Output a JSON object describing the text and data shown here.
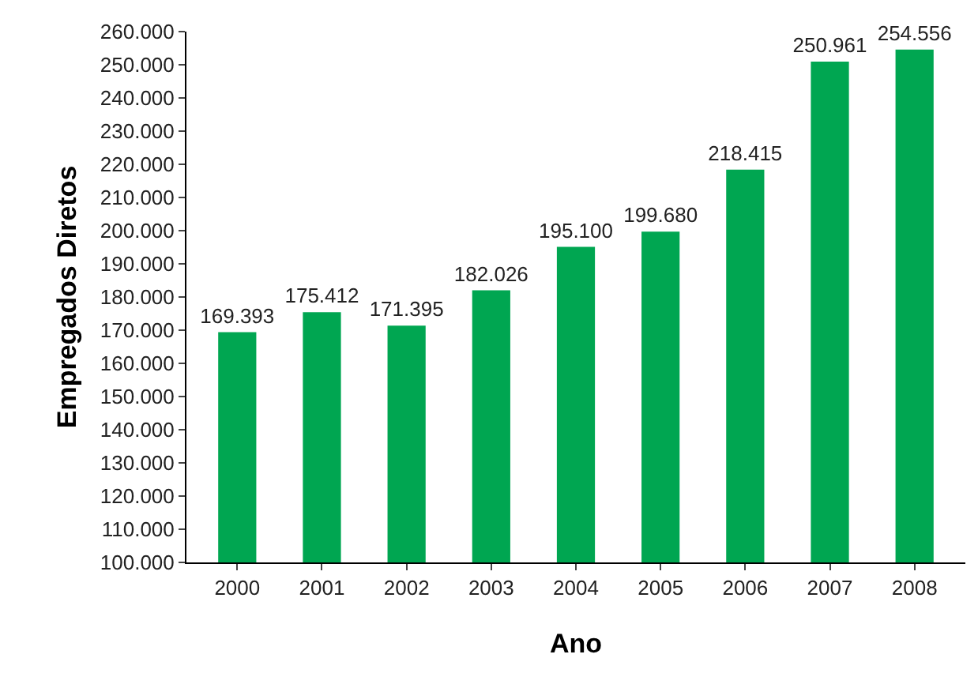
{
  "chart_data": {
    "type": "bar",
    "xlabel": "Ano",
    "ylabel": "Empregados Diretos",
    "categories": [
      "2000",
      "2001",
      "2002",
      "2003",
      "2004",
      "2005",
      "2006",
      "2007",
      "2008"
    ],
    "values": [
      169393,
      175412,
      171395,
      182026,
      195100,
      199680,
      218415,
      250961,
      254556
    ],
    "value_labels": [
      "169.393",
      "175.412",
      "171.395",
      "182.026",
      "195.100",
      "199.680",
      "218.415",
      "250.961",
      "254.556"
    ],
    "color": "#00a651",
    "ylim": [
      100000,
      260000
    ],
    "yticks": [
      {
        "value": 100000,
        "label": "100.000"
      },
      {
        "value": 110000,
        "label": "110.000"
      },
      {
        "value": 120000,
        "label": "120.000"
      },
      {
        "value": 130000,
        "label": "130.000"
      },
      {
        "value": 140000,
        "label": "140.000"
      },
      {
        "value": 150000,
        "label": "150.000"
      },
      {
        "value": 160000,
        "label": "160.000"
      },
      {
        "value": 170000,
        "label": "170.000"
      },
      {
        "value": 180000,
        "label": "180.000"
      },
      {
        "value": 190000,
        "label": "190.000"
      },
      {
        "value": 200000,
        "label": "200.000"
      },
      {
        "value": 210000,
        "label": "210.000"
      },
      {
        "value": 220000,
        "label": "220.000"
      },
      {
        "value": 230000,
        "label": "230.000"
      },
      {
        "value": 240000,
        "label": "240.000"
      },
      {
        "value": 250000,
        "label": "250.000"
      },
      {
        "value": 260000,
        "label": "260.000"
      }
    ],
    "grid": false
  }
}
